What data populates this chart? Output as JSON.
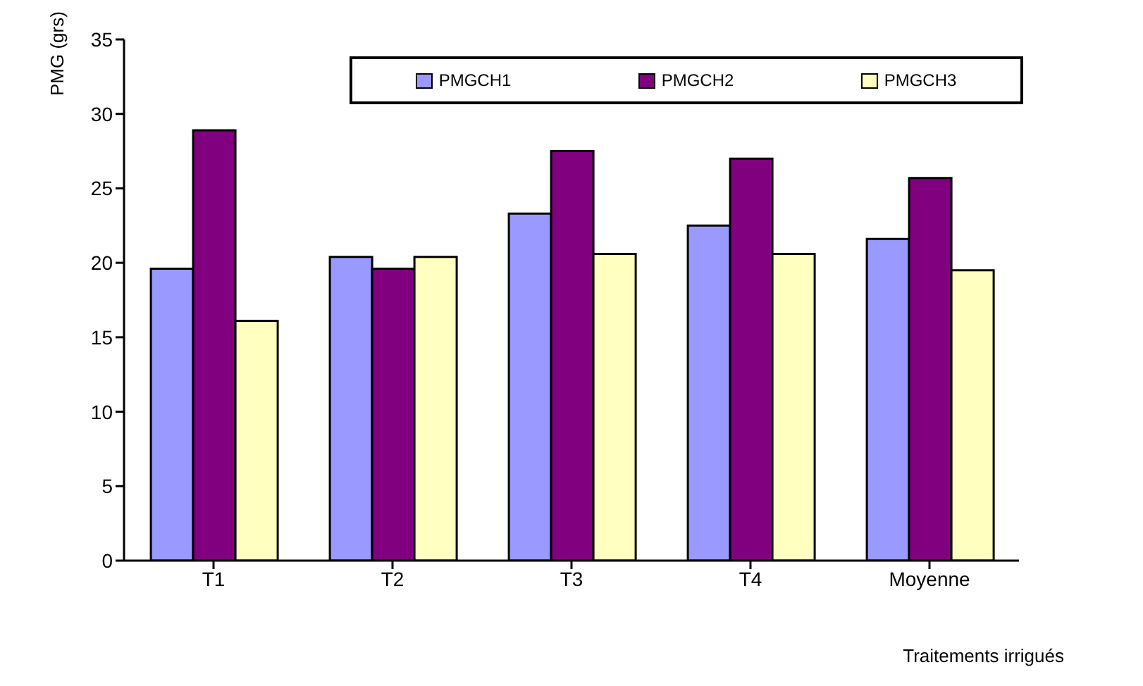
{
  "chart_data": {
    "type": "bar",
    "ylabel": "PMG (grs)",
    "xlabel": "Traitements irrigués",
    "categories": [
      "T1",
      "T2",
      "T3",
      "T4",
      "Moyenne"
    ],
    "series": [
      {
        "name": "PMGCH1",
        "color": "#9999ff",
        "values": [
          19.6,
          20.4,
          23.3,
          22.5,
          21.6
        ]
      },
      {
        "name": "PMGCH2",
        "color": "#800080",
        "values": [
          28.9,
          19.6,
          27.5,
          27.0,
          25.7
        ]
      },
      {
        "name": "PMGCH3",
        "color": "#ffffc0",
        "values": [
          16.1,
          20.4,
          20.6,
          20.6,
          19.5
        ]
      }
    ],
    "ylim": [
      0,
      35
    ],
    "yticks": [
      0,
      5,
      10,
      15,
      20,
      25,
      30,
      35
    ],
    "grid": false,
    "legend": "top"
  }
}
